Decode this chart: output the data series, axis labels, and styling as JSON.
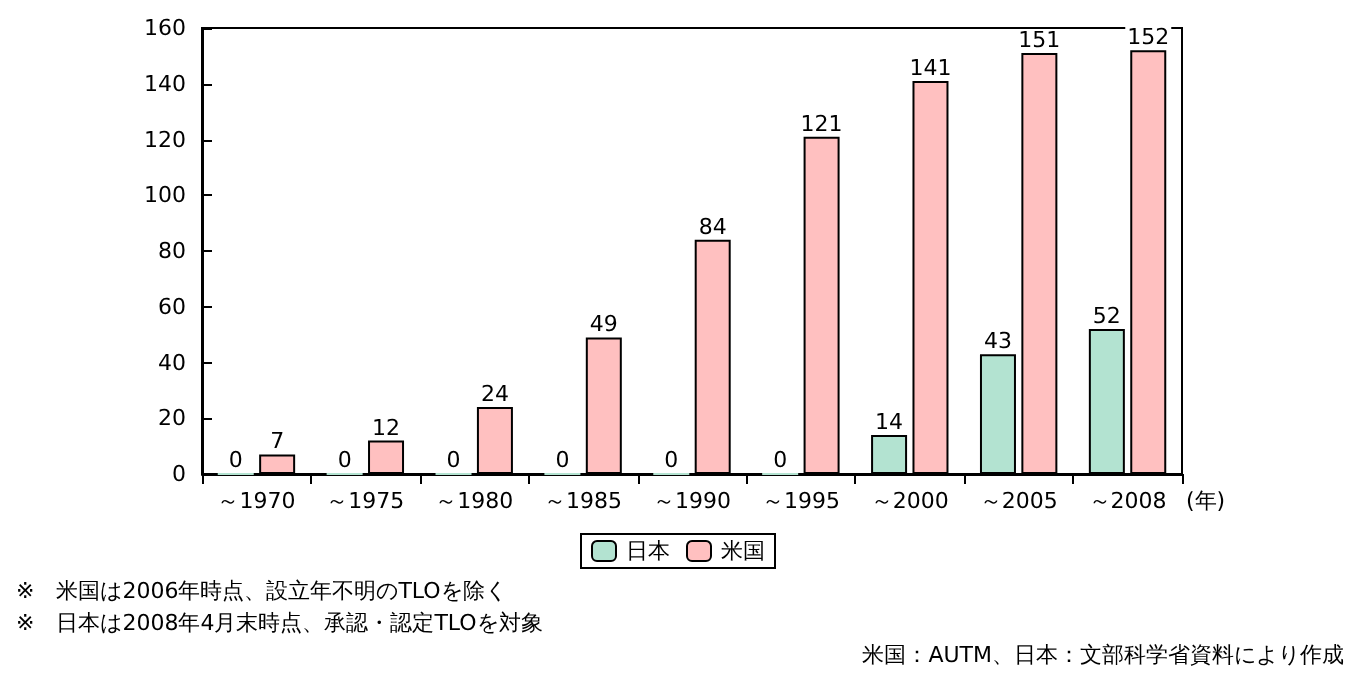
{
  "chart_data": {
    "type": "bar",
    "categories": [
      "～1970",
      "～1975",
      "～1980",
      "～1985",
      "～1990",
      "～1995",
      "～2000",
      "～2005",
      "～2008"
    ],
    "xlabel": "(年)",
    "series": [
      {
        "name": "日本",
        "color": "#b3e3d1",
        "values": [
          0,
          0,
          0,
          0,
          0,
          0,
          14,
          43,
          52
        ]
      },
      {
        "name": "米国",
        "color": "#ffc0c0",
        "values": [
          7,
          12,
          24,
          49,
          84,
          121,
          141,
          151,
          152
        ]
      }
    ],
    "ylim": [
      0,
      160
    ],
    "yticks": [
      0,
      20,
      40,
      60,
      80,
      100,
      120,
      140,
      160
    ],
    "grid": false,
    "legend": "bottom",
    "data_labels": true,
    "annotations": [
      "※　米国は2006年時点、設立年不明のTLOを除く",
      "※　日本は2008年4月末時点、承認・認定TLOを対象",
      "米国：AUTM、日本：文部科学省資料により作成"
    ]
  }
}
